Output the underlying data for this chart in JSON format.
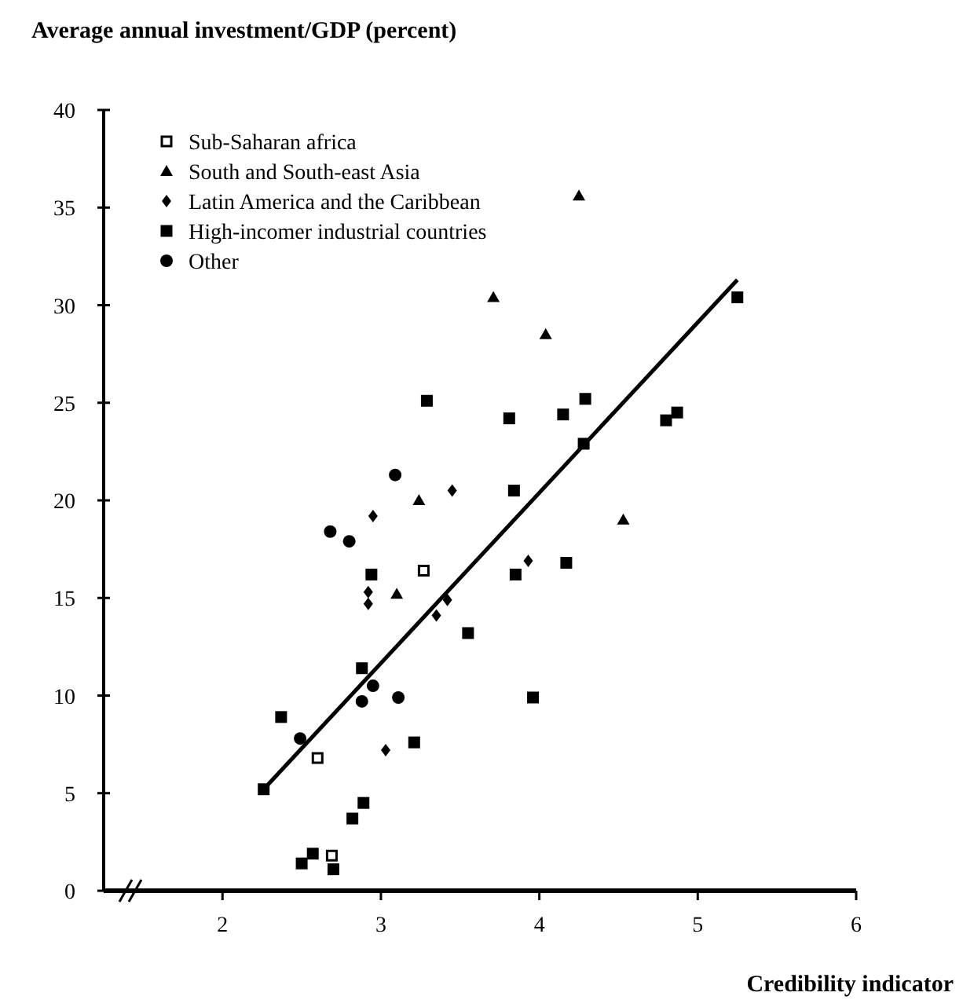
{
  "chart_data": {
    "type": "scatter",
    "title": "Average annual investment/GDP (percent)",
    "xlabel": "Credibility indicator",
    "xlim": [
      1.25,
      6
    ],
    "xticks": [
      2,
      3,
      4,
      5,
      6
    ],
    "ylim": [
      0,
      40
    ],
    "yticks": [
      0,
      5,
      10,
      15,
      20,
      25,
      30,
      35,
      40
    ],
    "grid": false,
    "legend": "top left",
    "series": [
      {
        "name": "Sub-Saharan africa",
        "color": "#ffffff",
        "marker": "square",
        "x": [
          3.27,
          2.6,
          2.69
        ],
        "values": [
          16.4,
          6.8,
          1.8
        ]
      },
      {
        "name": "South and South-east Asia",
        "color": "#000000",
        "marker": "triangle",
        "x": [
          4.25,
          3.71,
          4.04,
          3.24,
          4.53,
          3.1
        ],
        "values": [
          35.6,
          30.4,
          28.5,
          20,
          19,
          15.2
        ]
      },
      {
        "name": "Latin America and the Caribbean",
        "color": "#000000",
        "marker": "diamond",
        "x": [
          3.45,
          2.95,
          2.92,
          2.92,
          3.93,
          3.42,
          3.35,
          3.03
        ],
        "values": [
          20.5,
          19.2,
          15.3,
          14.7,
          16.9,
          14.9,
          14.1,
          7.2
        ]
      },
      {
        "name": "High-incomer industrial countries",
        "color": "#000000",
        "marker": "square",
        "x": [
          3.29,
          3.81,
          5.25,
          4.15,
          4.29,
          4.8,
          4.87,
          4.28,
          3.84,
          2.94,
          3.85,
          4.17,
          3.55,
          2.88,
          3.96,
          2.37,
          3.21,
          2.26,
          2.89,
          2.82,
          2.5,
          2.57,
          2.7
        ],
        "values": [
          25.1,
          24.2,
          30.4,
          24.4,
          25.2,
          24.1,
          24.5,
          22.9,
          20.5,
          16.2,
          16.2,
          16.8,
          13.2,
          11.4,
          9.9,
          8.9,
          7.6,
          5.2,
          4.5,
          3.7,
          1.4,
          1.9,
          1.1
        ]
      },
      {
        "name": "Other",
        "color": "#000000",
        "marker": "circle",
        "x": [
          3.09,
          2.68,
          2.8,
          2.95,
          2.88,
          3.11,
          2.49
        ],
        "values": [
          21.3,
          18.4,
          17.9,
          10.5,
          9.7,
          9.9,
          7.8
        ]
      },
      {
        "type": "line",
        "color": "#000000",
        "marker": "none",
        "x": [
          2.26,
          5.25
        ],
        "values": [
          5.2,
          31.3
        ]
      }
    ]
  }
}
